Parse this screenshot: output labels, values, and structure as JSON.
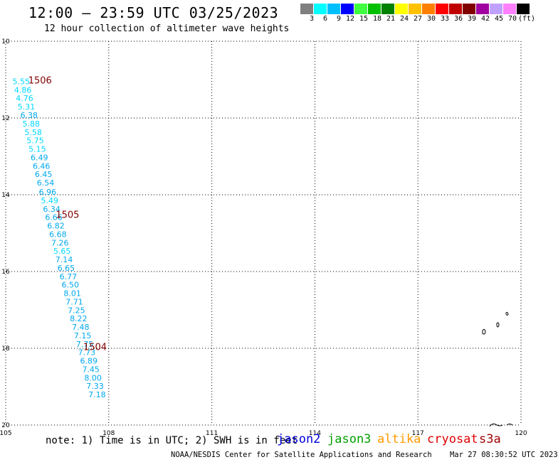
{
  "header": {
    "title": "12:00 — 23:59 UTC 03/25/2023",
    "subtitle": "12 hour collection of altimeter wave heights"
  },
  "colorbar": {
    "colors": [
      "#808080",
      "#00ffff",
      "#00bfff",
      "#0000ff",
      "#40ff40",
      "#00c000",
      "#008000",
      "#ffff00",
      "#ffc000",
      "#ff8000",
      "#ff0000",
      "#c00000",
      "#800000",
      "#a000a0",
      "#c0a0ff",
      "#ff80ff",
      "#000000"
    ],
    "labels": [
      "3",
      "6",
      "9",
      "12",
      "15",
      "18",
      "21",
      "24",
      "27",
      "30",
      "33",
      "36",
      "39",
      "42",
      "45",
      "70"
    ],
    "unit": "(ft)"
  },
  "map": {
    "lon_ticks": [
      "105",
      "108",
      "111",
      "114",
      "117",
      "120"
    ],
    "lat_ticks": [
      "10",
      "12",
      "14",
      "16",
      "18",
      "20"
    ],
    "lon_range": [
      105,
      120
    ],
    "lat_range": [
      10,
      20
    ]
  },
  "pass_labels": [
    {
      "text": "1506",
      "lon": 106.0,
      "lat": 11.1
    },
    {
      "text": "1505",
      "lon": 106.8,
      "lat": 14.6
    },
    {
      "text": "1504",
      "lon": 107.6,
      "lat": 18.05
    }
  ],
  "swh_observations": [
    {
      "v": "5.55",
      "lon": 105.45,
      "lat": 11.12
    },
    {
      "v": "4.86",
      "lon": 105.5,
      "lat": 11.34
    },
    {
      "v": "4.76",
      "lon": 105.55,
      "lat": 11.56
    },
    {
      "v": "5.31",
      "lon": 105.6,
      "lat": 11.78
    },
    {
      "v": "6.38",
      "lon": 105.68,
      "lat": 12.0
    },
    {
      "v": "5.88",
      "lon": 105.74,
      "lat": 12.22
    },
    {
      "v": "5.58",
      "lon": 105.8,
      "lat": 12.44
    },
    {
      "v": "5.75",
      "lon": 105.86,
      "lat": 12.66
    },
    {
      "v": "5.15",
      "lon": 105.92,
      "lat": 12.88
    },
    {
      "v": "6.49",
      "lon": 105.98,
      "lat": 13.1
    },
    {
      "v": "6.46",
      "lon": 106.04,
      "lat": 13.32
    },
    {
      "v": "6.45",
      "lon": 106.1,
      "lat": 13.54
    },
    {
      "v": "6.54",
      "lon": 106.16,
      "lat": 13.76
    },
    {
      "v": "6.96",
      "lon": 106.22,
      "lat": 14.0
    },
    {
      "v": "5.49",
      "lon": 106.28,
      "lat": 14.22
    },
    {
      "v": "6.34",
      "lon": 106.34,
      "lat": 14.44
    },
    {
      "v": "6.66",
      "lon": 106.4,
      "lat": 14.66
    },
    {
      "v": "6.82",
      "lon": 106.46,
      "lat": 14.88
    },
    {
      "v": "6.68",
      "lon": 106.52,
      "lat": 15.1
    },
    {
      "v": "7.26",
      "lon": 106.58,
      "lat": 15.32
    },
    {
      "v": "5.65",
      "lon": 106.64,
      "lat": 15.54
    },
    {
      "v": "7.14",
      "lon": 106.7,
      "lat": 15.76
    },
    {
      "v": "6.65",
      "lon": 106.76,
      "lat": 15.98
    },
    {
      "v": "6.77",
      "lon": 106.82,
      "lat": 16.2
    },
    {
      "v": "6.50",
      "lon": 106.88,
      "lat": 16.42
    },
    {
      "v": "8.01",
      "lon": 106.94,
      "lat": 16.64
    },
    {
      "v": "7.71",
      "lon": 107.0,
      "lat": 16.86
    },
    {
      "v": "7.25",
      "lon": 107.06,
      "lat": 17.08
    },
    {
      "v": "8.22",
      "lon": 107.12,
      "lat": 17.3
    },
    {
      "v": "7.48",
      "lon": 107.18,
      "lat": 17.52
    },
    {
      "v": "7.15",
      "lon": 107.24,
      "lat": 17.74
    },
    {
      "v": "7.75",
      "lon": 107.3,
      "lat": 17.96
    },
    {
      "v": "7.73",
      "lon": 107.36,
      "lat": 18.18
    },
    {
      "v": "6.89",
      "lon": 107.42,
      "lat": 18.4
    },
    {
      "v": "7.45",
      "lon": 107.48,
      "lat": 18.62
    },
    {
      "v": "8.00",
      "lon": 107.54,
      "lat": 18.84
    },
    {
      "v": "7.33",
      "lon": 107.6,
      "lat": 19.06
    },
    {
      "v": "7.18",
      "lon": 107.66,
      "lat": 19.28
    }
  ],
  "note": "note: 1) Time is in UTC; 2) SWH is in feet",
  "satellites": [
    {
      "name": "jason2",
      "color": "#0000e0"
    },
    {
      "name": "jason3",
      "color": "#00a000"
    },
    {
      "name": "altika",
      "color": "#ff9900"
    },
    {
      "name": "cryosat",
      "color": "#e00000"
    },
    {
      "name": "s3a",
      "color": "#a00000"
    }
  ],
  "footer": {
    "source": "NOAA/NESDIS Center for Satellite Applications and Research",
    "timestamp": "Mar 27 08:30:52 UTC 2023"
  }
}
